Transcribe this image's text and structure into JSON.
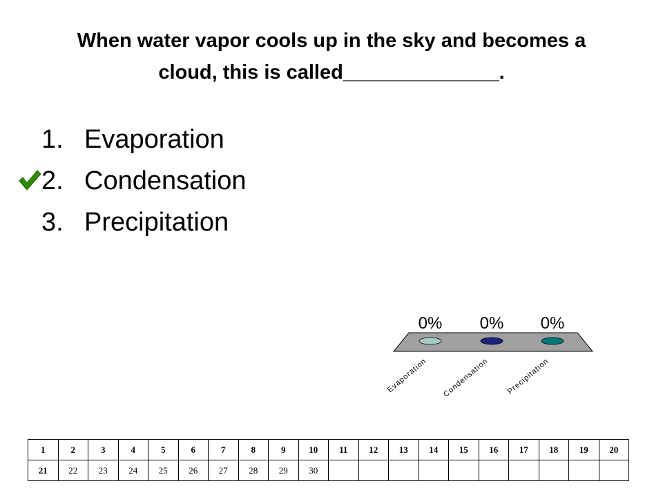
{
  "slide": {
    "question": "When water vapor cools up in the sky and becomes a cloud, this is called______________.",
    "choices": [
      {
        "number": "1.",
        "label": "Evaporation"
      },
      {
        "number": "2.",
        "label": "Condensation"
      },
      {
        "number": "3.",
        "label": "Precipitation"
      }
    ],
    "correct_choice": 2,
    "check_icon": "check-mark-icon",
    "check_color": "#2e8b00"
  },
  "chart_data": {
    "type": "bar",
    "categories": [
      "Evaporation",
      "Condensation",
      "Precipitation"
    ],
    "values": [
      0,
      0,
      0
    ],
    "value_labels": [
      "0%",
      "0%",
      "0%"
    ],
    "colors": [
      "#a9c8c8",
      "#1a237e",
      "#00797a"
    ],
    "ylim": [
      0,
      100
    ]
  },
  "response_grid": {
    "row1": [
      "1",
      "2",
      "3",
      "4",
      "5",
      "6",
      "7",
      "8",
      "9",
      "10",
      "11",
      "12",
      "13",
      "14",
      "15",
      "16",
      "17",
      "18",
      "19",
      "20"
    ],
    "row2": [
      "21",
      "22",
      "23",
      "24",
      "25",
      "26",
      "27",
      "28",
      "29",
      "30",
      "",
      "",
      "",
      "",
      "",
      "",
      "",
      "",
      "",
      ""
    ]
  }
}
